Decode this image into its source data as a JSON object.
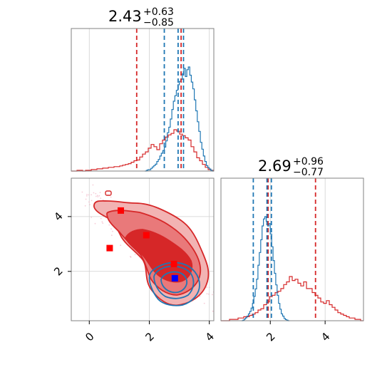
{
  "colors": {
    "red": "#d62728",
    "blue": "#1f77b4",
    "red_fill_outer": "#f2b3b3",
    "red_fill_mid": "#e9797a",
    "red_fill_inner": "#d62728",
    "marker_red": "#ff0000",
    "marker_blue": "#0000ff",
    "grid": "#d0d0d0",
    "frame": "#808080"
  },
  "chart_data": [
    {
      "type": "histogram",
      "panel": "marginal-1",
      "title": {
        "median": "2.43",
        "upper": "+0.63",
        "lower": "−0.85"
      },
      "xlim": [
        -0.6,
        4.15
      ],
      "grid_x": [
        0,
        2,
        4
      ],
      "series": [
        {
          "name": "",
          "color": "red",
          "bin_start": -0.6,
          "bin_width": 0.095,
          "counts": [
            0,
            0,
            1,
            1,
            0,
            1,
            1,
            2,
            2,
            3,
            3,
            4,
            4,
            5,
            5,
            6,
            6,
            7,
            8,
            9,
            10,
            12,
            14,
            15,
            19,
            23,
            26,
            31,
            36,
            33,
            29,
            37,
            42,
            46,
            49,
            51,
            56,
            54,
            50,
            48,
            45,
            42,
            33,
            26,
            18,
            14,
            9,
            5,
            2,
            1
          ]
        },
        {
          "name": "",
          "color": "blue",
          "bin_start": 1.85,
          "bin_width": 0.05,
          "counts": [
            0,
            1,
            2,
            2,
            4,
            6,
            8,
            10,
            14,
            17,
            22,
            26,
            30,
            35,
            44,
            56,
            64,
            76,
            90,
            102,
            110,
            118,
            126,
            131,
            134,
            142,
            150,
            138,
            148,
            152,
            140,
            130,
            120,
            104,
            88,
            72,
            58,
            42,
            32,
            22,
            14,
            8,
            5,
            3,
            1,
            0
          ]
        }
      ],
      "quantile_lines": [
        {
          "color": "red",
          "values": [
            1.58,
            3.06
          ]
        },
        {
          "color": "blue",
          "values": [
            2.5,
            2.96,
            3.14
          ]
        }
      ]
    },
    {
      "type": "histogram",
      "panel": "marginal-2",
      "title": {
        "median": "2.69",
        "upper": "+0.96",
        "lower": "−0.77"
      },
      "xlim": [
        0.2,
        5.4
      ],
      "grid_x": [
        2,
        4
      ],
      "series": [
        {
          "name": "",
          "color": "red",
          "bin_start": 0.2,
          "bin_width": 0.104,
          "counts": [
            0,
            0,
            0,
            1,
            1,
            1,
            2,
            2,
            3,
            3,
            4,
            5,
            6,
            8,
            9,
            12,
            14,
            18,
            19,
            21,
            22,
            24,
            27,
            29,
            33,
            30,
            31,
            28,
            26,
            29,
            24,
            24,
            21,
            19,
            17,
            14,
            13,
            15,
            12,
            10,
            8,
            6,
            5,
            4,
            3,
            2,
            2,
            1,
            1,
            0
          ]
        },
        {
          "name": "",
          "color": "blue",
          "bin_start": 0.95,
          "bin_width": 0.05,
          "counts": [
            0,
            1,
            3,
            5,
            8,
            12,
            16,
            22,
            30,
            42,
            55,
            72,
            96,
            118,
            140,
            164,
            176,
            180,
            172,
            164,
            168,
            150,
            128,
            104,
            82,
            62,
            44,
            30,
            20,
            12,
            8,
            4,
            2,
            1,
            0
          ]
        }
      ],
      "quantile_lines": [
        {
          "color": "red",
          "values": [
            1.92,
            3.65
          ]
        },
        {
          "color": "blue",
          "values": [
            1.38,
            1.88,
            2.04
          ]
        }
      ]
    },
    {
      "type": "contour",
      "panel": "joint",
      "xlim": [
        -0.6,
        4.15
      ],
      "ylim": [
        0.2,
        5.4
      ],
      "x_ticks": [
        "0",
        "2",
        "4"
      ],
      "y_ticks": [
        "2",
        "4"
      ],
      "x_tick_values": [
        0,
        2,
        4
      ],
      "y_tick_values": [
        2,
        4
      ],
      "red_markers": [
        {
          "x": 1.05,
          "y": 4.22
        },
        {
          "x": 1.9,
          "y": 3.32
        },
        {
          "x": 0.68,
          "y": 2.85
        },
        {
          "x": 2.82,
          "y": 2.27
        }
      ],
      "blue_markers": [
        {
          "x": 2.85,
          "y": 1.75
        }
      ]
    }
  ]
}
